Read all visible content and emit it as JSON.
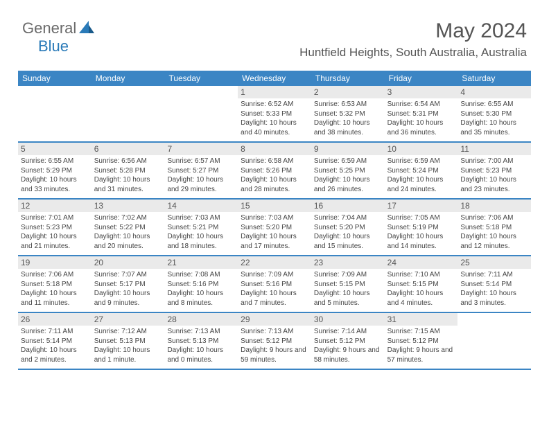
{
  "logo": {
    "part1": "General",
    "part2": "Blue"
  },
  "title": "May 2024",
  "location": "Huntfield Heights, South Australia, Australia",
  "header_bg": "#3b85c4",
  "day_headers": [
    "Sunday",
    "Monday",
    "Tuesday",
    "Wednesday",
    "Thursday",
    "Friday",
    "Saturday"
  ],
  "colors": {
    "header_bg": "#3b85c4",
    "daynum_bg": "#eaeaea",
    "text": "#444444",
    "title_text": "#555555",
    "logo_gray": "#6a6a6a",
    "logo_blue": "#2a7ab8"
  },
  "days": [
    {
      "n": "",
      "sr": "",
      "ss": "",
      "dl": ""
    },
    {
      "n": "",
      "sr": "",
      "ss": "",
      "dl": ""
    },
    {
      "n": "",
      "sr": "",
      "ss": "",
      "dl": ""
    },
    {
      "n": "1",
      "sr": "Sunrise: 6:52 AM",
      "ss": "Sunset: 5:33 PM",
      "dl": "Daylight: 10 hours and 40 minutes."
    },
    {
      "n": "2",
      "sr": "Sunrise: 6:53 AM",
      "ss": "Sunset: 5:32 PM",
      "dl": "Daylight: 10 hours and 38 minutes."
    },
    {
      "n": "3",
      "sr": "Sunrise: 6:54 AM",
      "ss": "Sunset: 5:31 PM",
      "dl": "Daylight: 10 hours and 36 minutes."
    },
    {
      "n": "4",
      "sr": "Sunrise: 6:55 AM",
      "ss": "Sunset: 5:30 PM",
      "dl": "Daylight: 10 hours and 35 minutes."
    },
    {
      "n": "5",
      "sr": "Sunrise: 6:55 AM",
      "ss": "Sunset: 5:29 PM",
      "dl": "Daylight: 10 hours and 33 minutes."
    },
    {
      "n": "6",
      "sr": "Sunrise: 6:56 AM",
      "ss": "Sunset: 5:28 PM",
      "dl": "Daylight: 10 hours and 31 minutes."
    },
    {
      "n": "7",
      "sr": "Sunrise: 6:57 AM",
      "ss": "Sunset: 5:27 PM",
      "dl": "Daylight: 10 hours and 29 minutes."
    },
    {
      "n": "8",
      "sr": "Sunrise: 6:58 AM",
      "ss": "Sunset: 5:26 PM",
      "dl": "Daylight: 10 hours and 28 minutes."
    },
    {
      "n": "9",
      "sr": "Sunrise: 6:59 AM",
      "ss": "Sunset: 5:25 PM",
      "dl": "Daylight: 10 hours and 26 minutes."
    },
    {
      "n": "10",
      "sr": "Sunrise: 6:59 AM",
      "ss": "Sunset: 5:24 PM",
      "dl": "Daylight: 10 hours and 24 minutes."
    },
    {
      "n": "11",
      "sr": "Sunrise: 7:00 AM",
      "ss": "Sunset: 5:23 PM",
      "dl": "Daylight: 10 hours and 23 minutes."
    },
    {
      "n": "12",
      "sr": "Sunrise: 7:01 AM",
      "ss": "Sunset: 5:23 PM",
      "dl": "Daylight: 10 hours and 21 minutes."
    },
    {
      "n": "13",
      "sr": "Sunrise: 7:02 AM",
      "ss": "Sunset: 5:22 PM",
      "dl": "Daylight: 10 hours and 20 minutes."
    },
    {
      "n": "14",
      "sr": "Sunrise: 7:03 AM",
      "ss": "Sunset: 5:21 PM",
      "dl": "Daylight: 10 hours and 18 minutes."
    },
    {
      "n": "15",
      "sr": "Sunrise: 7:03 AM",
      "ss": "Sunset: 5:20 PM",
      "dl": "Daylight: 10 hours and 17 minutes."
    },
    {
      "n": "16",
      "sr": "Sunrise: 7:04 AM",
      "ss": "Sunset: 5:20 PM",
      "dl": "Daylight: 10 hours and 15 minutes."
    },
    {
      "n": "17",
      "sr": "Sunrise: 7:05 AM",
      "ss": "Sunset: 5:19 PM",
      "dl": "Daylight: 10 hours and 14 minutes."
    },
    {
      "n": "18",
      "sr": "Sunrise: 7:06 AM",
      "ss": "Sunset: 5:18 PM",
      "dl": "Daylight: 10 hours and 12 minutes."
    },
    {
      "n": "19",
      "sr": "Sunrise: 7:06 AM",
      "ss": "Sunset: 5:18 PM",
      "dl": "Daylight: 10 hours and 11 minutes."
    },
    {
      "n": "20",
      "sr": "Sunrise: 7:07 AM",
      "ss": "Sunset: 5:17 PM",
      "dl": "Daylight: 10 hours and 9 minutes."
    },
    {
      "n": "21",
      "sr": "Sunrise: 7:08 AM",
      "ss": "Sunset: 5:16 PM",
      "dl": "Daylight: 10 hours and 8 minutes."
    },
    {
      "n": "22",
      "sr": "Sunrise: 7:09 AM",
      "ss": "Sunset: 5:16 PM",
      "dl": "Daylight: 10 hours and 7 minutes."
    },
    {
      "n": "23",
      "sr": "Sunrise: 7:09 AM",
      "ss": "Sunset: 5:15 PM",
      "dl": "Daylight: 10 hours and 5 minutes."
    },
    {
      "n": "24",
      "sr": "Sunrise: 7:10 AM",
      "ss": "Sunset: 5:15 PM",
      "dl": "Daylight: 10 hours and 4 minutes."
    },
    {
      "n": "25",
      "sr": "Sunrise: 7:11 AM",
      "ss": "Sunset: 5:14 PM",
      "dl": "Daylight: 10 hours and 3 minutes."
    },
    {
      "n": "26",
      "sr": "Sunrise: 7:11 AM",
      "ss": "Sunset: 5:14 PM",
      "dl": "Daylight: 10 hours and 2 minutes."
    },
    {
      "n": "27",
      "sr": "Sunrise: 7:12 AM",
      "ss": "Sunset: 5:13 PM",
      "dl": "Daylight: 10 hours and 1 minute."
    },
    {
      "n": "28",
      "sr": "Sunrise: 7:13 AM",
      "ss": "Sunset: 5:13 PM",
      "dl": "Daylight: 10 hours and 0 minutes."
    },
    {
      "n": "29",
      "sr": "Sunrise: 7:13 AM",
      "ss": "Sunset: 5:12 PM",
      "dl": "Daylight: 9 hours and 59 minutes."
    },
    {
      "n": "30",
      "sr": "Sunrise: 7:14 AM",
      "ss": "Sunset: 5:12 PM",
      "dl": "Daylight: 9 hours and 58 minutes."
    },
    {
      "n": "31",
      "sr": "Sunrise: 7:15 AM",
      "ss": "Sunset: 5:12 PM",
      "dl": "Daylight: 9 hours and 57 minutes."
    },
    {
      "n": "",
      "sr": "",
      "ss": "",
      "dl": ""
    }
  ]
}
